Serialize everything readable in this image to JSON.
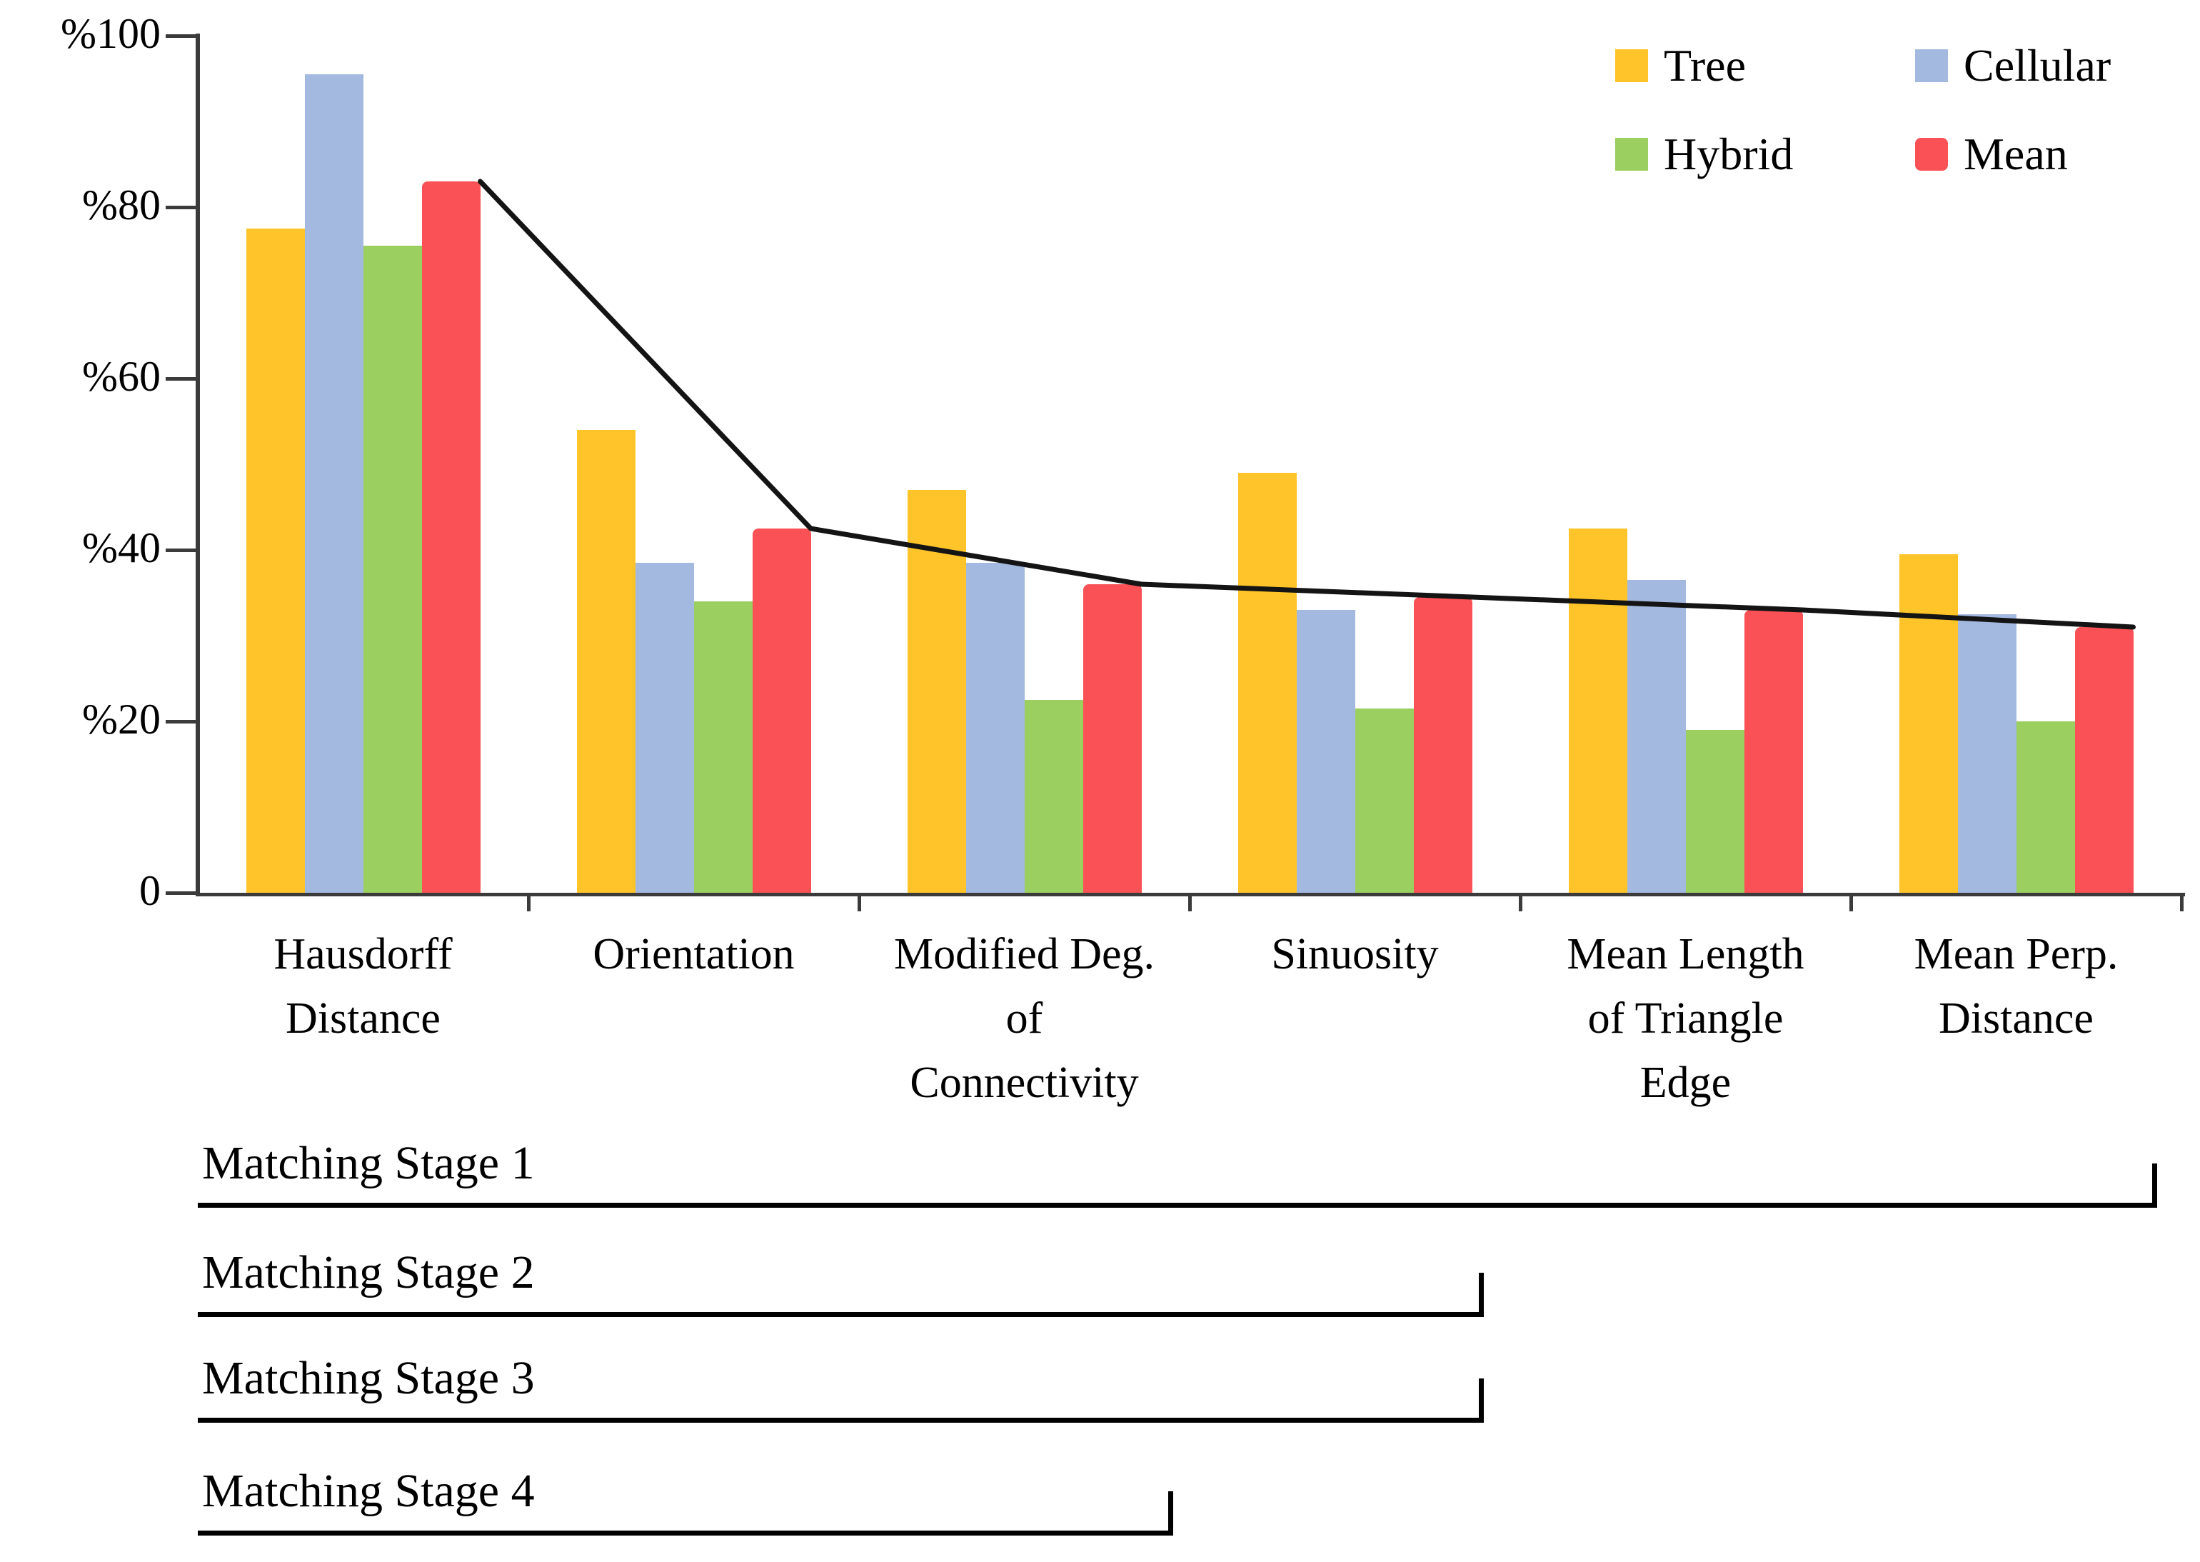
{
  "page": {
    "background": "#ffffff"
  },
  "chart_data": {
    "type": "bar",
    "title": "",
    "xlabel": "",
    "ylabel": "",
    "ylim": [
      0,
      100
    ],
    "grid": false,
    "legend_position": "top-right",
    "y_ticks": [
      {
        "label": "%100",
        "value": 100
      },
      {
        "label": "%80",
        "value": 80
      },
      {
        "label": "%60",
        "value": 60
      },
      {
        "label": "%40",
        "value": 40
      },
      {
        "label": "%20",
        "value": 20
      },
      {
        "label": "0",
        "value": 0
      }
    ],
    "categories": [
      "Hausdorff\nDistance",
      "Orientation",
      "Modified Deg.\nof\nConnectivity",
      "Sinuosity",
      "Mean Length\nof Triangle\nEdge",
      "Mean Perp.\nDistance"
    ],
    "series": [
      {
        "name": "Tree",
        "color": "#FFC42A",
        "values": [
          77.5,
          54,
          47,
          49,
          42.5,
          39.5
        ]
      },
      {
        "name": "Cellular",
        "color": "#A4B9E0",
        "values": [
          95.5,
          38.5,
          38.5,
          33,
          36.5,
          32.5
        ]
      },
      {
        "name": "Hybrid",
        "color": "#9BCF5F",
        "values": [
          75.5,
          34,
          22.5,
          21.5,
          19,
          20
        ]
      },
      {
        "name": "Mean",
        "color": "#F95155",
        "values": [
          83,
          42.5,
          36,
          34.5,
          33,
          31
        ]
      }
    ],
    "mean_line": {
      "series": "Mean",
      "color": "#141414"
    }
  },
  "stages": {
    "items": [
      {
        "label": "Matching Stage 1"
      },
      {
        "label": "Matching Stage 2"
      },
      {
        "label": "Matching Stage 3"
      },
      {
        "label": "Matching Stage 4"
      }
    ]
  }
}
